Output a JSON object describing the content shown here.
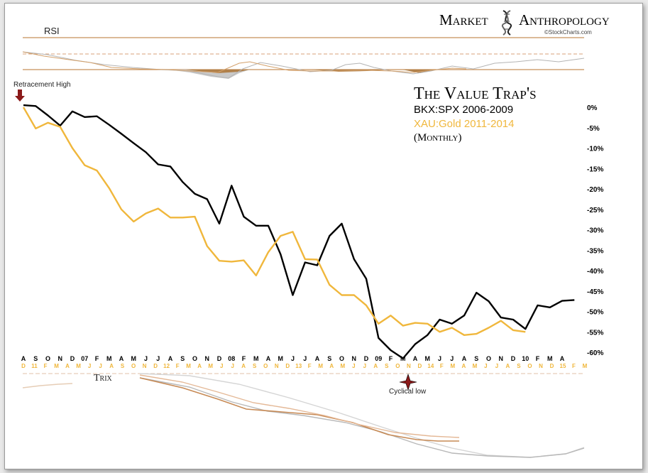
{
  "brand": {
    "name_part1": "Market",
    "name_part2": "Anthropology",
    "credit": "©StockCharts.com",
    "icon": "dna-helix-icon"
  },
  "panels": {
    "rsi_label": "RSI",
    "trix_label": "Trix"
  },
  "annotations": {
    "retracement_high": "Retracement High",
    "cyclical_low": "Cyclical low"
  },
  "colors": {
    "bkx": "#000000",
    "gold": "#f0b73c",
    "accent": "#c8905a",
    "marker": "#8b1a1a"
  },
  "chart_data": {
    "type": "line",
    "title": "The Value Trap's",
    "subtitle": "(Monthly)",
    "ylim": [
      -60,
      0
    ],
    "y_ticks": [
      "0%",
      "-5%",
      "-10%",
      "-15%",
      "-20%",
      "-25%",
      "-30%",
      "-35%",
      "-40%",
      "-45%",
      "-50%",
      "-55%",
      "-60%"
    ],
    "grid": false,
    "legend": "top-right",
    "x_top_labels": [
      "A",
      "S",
      "O",
      "N",
      "D",
      "07",
      "F",
      "M",
      "A",
      "M",
      "J",
      "J",
      "A",
      "S",
      "O",
      "N",
      "D",
      "08",
      "F",
      "M",
      "A",
      "M",
      "J",
      "J",
      "A",
      "S",
      "O",
      "N",
      "D",
      "09",
      "F",
      "M",
      "A",
      "M",
      "J",
      "J",
      "A",
      "S",
      "O",
      "N",
      "D",
      "10",
      "F",
      "M",
      "A"
    ],
    "x_bottom_labels": [
      "D",
      "11",
      "F",
      "M",
      "A",
      "M",
      "J",
      "J",
      "A",
      "S",
      "O",
      "N",
      "D",
      "12",
      "F",
      "M",
      "A",
      "M",
      "J",
      "J",
      "A",
      "S",
      "O",
      "N",
      "D",
      "13",
      "F",
      "M",
      "A",
      "M",
      "J",
      "J",
      "A",
      "S",
      "O",
      "N",
      "D",
      "14",
      "F",
      "M",
      "A",
      "M",
      "J",
      "J",
      "A",
      "S",
      "O",
      "N",
      "D",
      "15",
      "F",
      "M"
    ],
    "series": [
      {
        "name": "BKX:SPX 2006-2009",
        "values": [
          0.5,
          0.3,
          -2,
          -4.5,
          -1,
          -2.4,
          -2.2,
          -4.3,
          -6.5,
          -8.8,
          -11,
          -14,
          -14.5,
          -18.3,
          -21.2,
          -22.5,
          -28.5,
          -19.2,
          -26.8,
          -29,
          -29,
          -36,
          -46,
          -38,
          -38.7,
          -31.5,
          -28.5,
          -37.2,
          -42,
          -56.5,
          -59.5,
          -61.5,
          -58,
          -55.8,
          -52,
          -53,
          -51,
          -45.4,
          -47.5,
          -51.5,
          -52,
          -54.3,
          -48.5,
          -49,
          -47.4,
          -47.2
        ]
      },
      {
        "name": "XAU:Gold 2011-2014",
        "values": [
          0,
          -5.2,
          -3.8,
          -4.8,
          -10,
          -14.2,
          -15.5,
          -19.8,
          -25,
          -28,
          -26,
          -24.8,
          -27,
          -27,
          -26.8,
          -34,
          -37.6,
          -37.8,
          -37.5,
          -41.2,
          -35.5,
          -31.5,
          -30.5,
          -37.2,
          -37.3,
          -43.5,
          -46,
          -46,
          -48.5,
          -53,
          -51,
          -53.5,
          -52.8,
          -53,
          -55,
          -54,
          -55.8,
          -55.5,
          -54,
          -52.3,
          -54.6,
          -55
        ]
      }
    ]
  }
}
